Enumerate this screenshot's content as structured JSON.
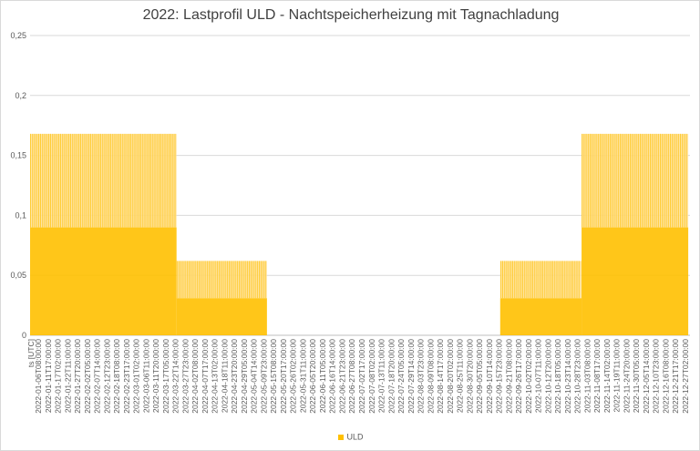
{
  "chart_data": {
    "type": "bar",
    "title": "2022: Lastprofil ULD - Nachtspeicherheizung mit Tagnachladung",
    "xlabel": "ts [UTC]",
    "ylabel": "",
    "ylim": [
      0,
      0.25
    ],
    "y_ticks": [
      "0",
      "0,05",
      "0,1",
      "0,15",
      "0,2",
      "0,25"
    ],
    "grid": true,
    "legend_position": "bottom",
    "x_tick_labels": [
      "2022-01-06T08:00:00",
      "2022-01-11T17:00:00",
      "2022-01-17T02:00:00",
      "2022-01-22T11:00:00",
      "2022-01-27T20:00:00",
      "2022-02-02T05:00:00",
      "2022-02-07T14:00:00",
      "2022-02-12T23:00:00",
      "2022-02-18T08:00:00",
      "2022-02-23T17:00:00",
      "2022-03-01T02:00:00",
      "2022-03-06T11:00:00",
      "2022-03-11T20:00:00",
      "2022-03-17T05:00:00",
      "2022-03-22T14:00:00",
      "2022-03-27T23:00:00",
      "2022-04-02T08:00:00",
      "2022-04-07T17:00:00",
      "2022-04-13T02:00:00",
      "2022-04-18T11:00:00",
      "2022-04-23T20:00:00",
      "2022-04-29T05:00:00",
      "2022-05-04T14:00:00",
      "2022-05-09T23:00:00",
      "2022-05-15T08:00:00",
      "2022-05-20T17:00:00",
      "2022-05-26T02:00:00",
      "2022-05-31T11:00:00",
      "2022-06-05T20:00:00",
      "2022-06-11T05:00:00",
      "2022-06-16T14:00:00",
      "2022-06-21T23:00:00",
      "2022-06-27T08:00:00",
      "2022-07-02T17:00:00",
      "2022-07-08T02:00:00",
      "2022-07-13T11:00:00",
      "2022-07-18T20:00:00",
      "2022-07-24T05:00:00",
      "2022-07-29T14:00:00",
      "2022-08-03T23:00:00",
      "2022-08-09T08:00:00",
      "2022-08-14T17:00:00",
      "2022-08-20T02:00:00",
      "2022-08-25T11:00:00",
      "2022-08-30T20:00:00",
      "2022-09-05T05:00:00",
      "2022-09-10T14:00:00",
      "2022-09-15T23:00:00",
      "2022-09-21T08:00:00",
      "2022-09-26T17:00:00",
      "2022-10-02T02:00:00",
      "2022-10-07T11:00:00",
      "2022-10-12T20:00:00",
      "2022-10-18T05:00:00",
      "2022-10-23T14:00:00",
      "2022-10-28T23:00:00",
      "2022-11-03T08:00:00",
      "2022-11-08T17:00:00",
      "2022-11-14T02:00:00",
      "2022-11-19T11:00:00",
      "2022-11-24T20:00:00",
      "2022-11-30T05:00:00",
      "2022-12-05T14:00:00",
      "2022-12-10T23:00:00",
      "2022-12-16T08:00:00",
      "2022-12-21T17:00:00",
      "2022-12-27T02:00:00"
    ],
    "series": [
      {
        "name": "ULD",
        "color": "#ffc000",
        "segments": [
          {
            "from": "2022-01-01",
            "to": "2022-03-23",
            "base": 0.09,
            "peak": 0.168
          },
          {
            "from": "2022-03-23",
            "to": "2022-05-12",
            "base": 0.031,
            "peak": 0.062
          },
          {
            "from": "2022-05-12",
            "to": "2022-09-18",
            "base": 0,
            "peak": 0
          },
          {
            "from": "2022-09-18",
            "to": "2022-11-02",
            "base": 0.031,
            "peak": 0.062
          },
          {
            "from": "2022-11-02",
            "to": "2022-12-31",
            "base": 0.09,
            "peak": 0.168
          }
        ]
      }
    ]
  }
}
